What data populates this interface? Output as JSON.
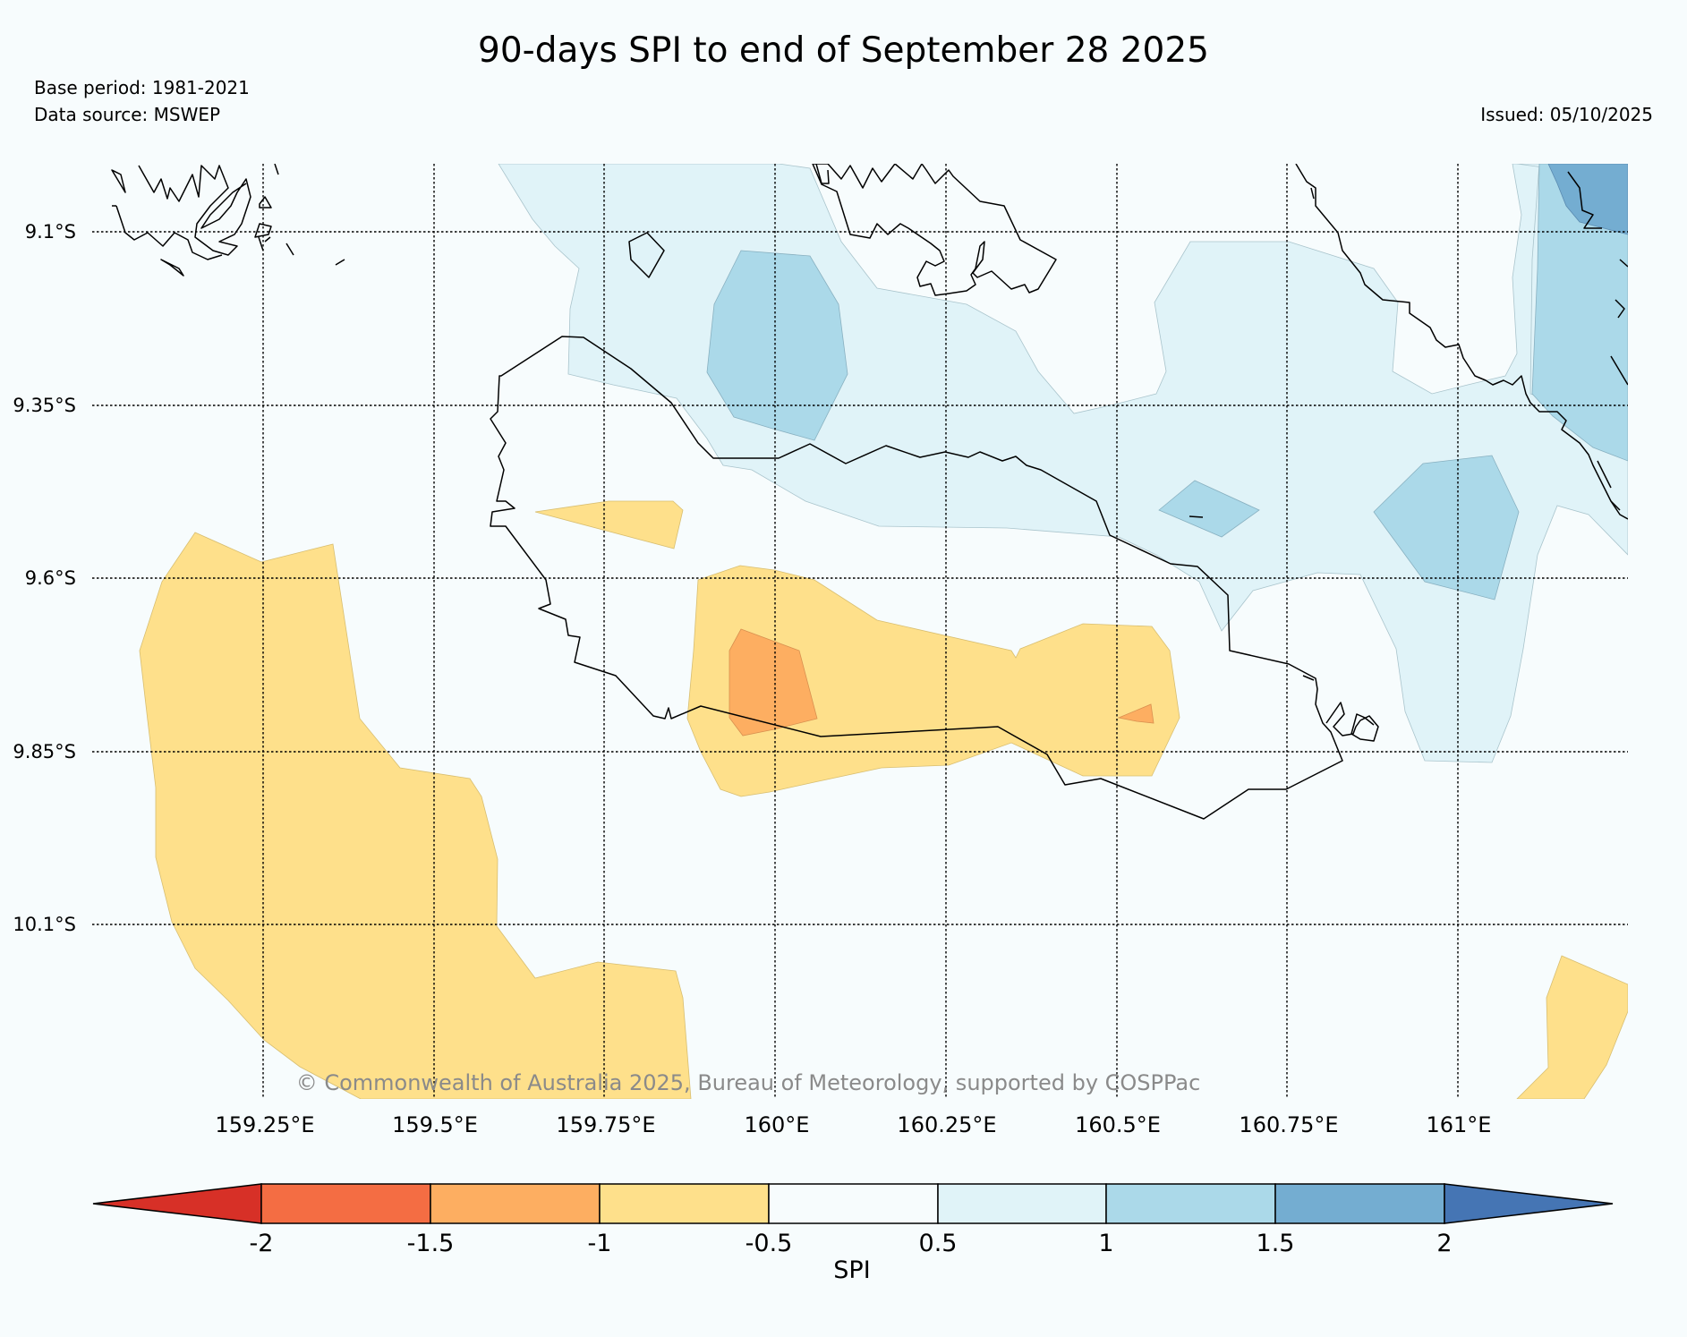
{
  "header": {
    "title": "90-days SPI to end of September 28 2025",
    "base_period": "Base period: 1981-2021",
    "data_source": "Data source: MSWEP",
    "issued": "Issued: 05/10/2025"
  },
  "map": {
    "lat_ticks": [
      "9.1°S",
      "9.35°S",
      "9.6°S",
      "9.85°S",
      "10.1°S"
    ],
    "lon_ticks": [
      "159.25°E",
      "159.5°E",
      "159.75°E",
      "160°E",
      "160.25°E",
      "160.5°E",
      "160.75°E",
      "161°E"
    ],
    "copyright": "© Commonwealth of Australia 2025, Bureau of Meteorology, supported by COSPPac"
  },
  "colorbar": {
    "label": "SPI",
    "ticks": [
      "-2",
      "-1.5",
      "-1",
      "-0.5",
      "0.5",
      "1",
      "1.5",
      "2"
    ],
    "colors": {
      "below_-2": "#d73027",
      "-2_-1.5": "#f46d43",
      "-1.5_-1": "#fdae61",
      "-1_-0.5": "#fee08b",
      "-0.5_0.5": "#f7fcfd",
      "0.5_1": "#e0f3f8",
      "1_1.5": "#abd9e9",
      "1.5_2": "#74add1",
      "above_2": "#4575b4"
    }
  }
}
